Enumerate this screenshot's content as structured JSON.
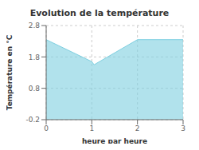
{
  "chart_data": {
    "type": "area",
    "title": "Evolution de la température",
    "xlabel": "heure par heure",
    "ylabel": "Température en °C",
    "x": [
      0,
      1,
      1.05,
      2,
      3
    ],
    "values": [
      2.35,
      1.65,
      1.55,
      2.35,
      2.35
    ],
    "color": "#7dcfe0",
    "xlim": [
      0,
      3
    ],
    "ylim": [
      -0.2,
      2.8
    ],
    "xticks": [
      0,
      1,
      2,
      3
    ],
    "yticks": [
      -0.2,
      0.8,
      1.8,
      2.8
    ],
    "grid": true
  }
}
